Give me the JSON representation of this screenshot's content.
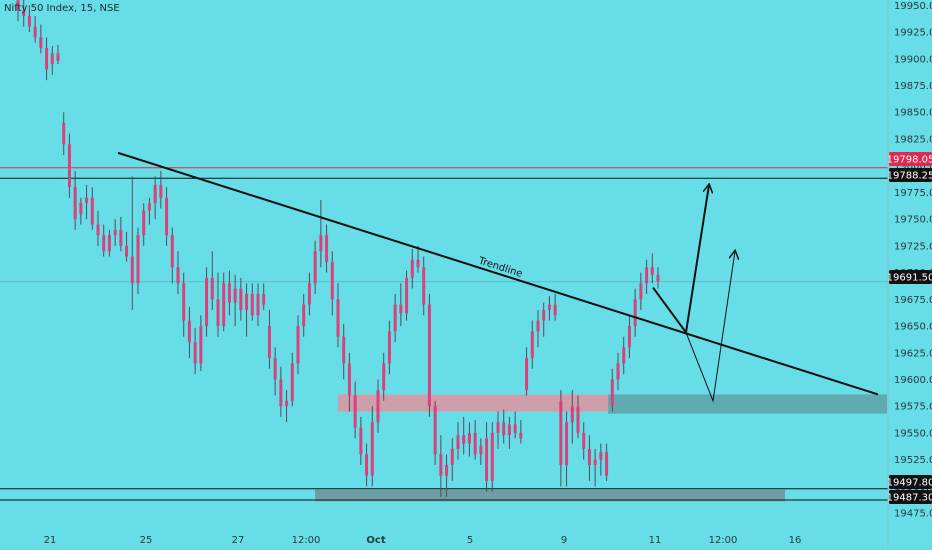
{
  "header": {
    "title": "Nifty 50 Index, 15, NSE"
  },
  "colors": {
    "background": "#67dde7",
    "axis_bg": "#ffffff",
    "candle": "#d9417a",
    "wick": "#5a4a55",
    "resistance_line": "#e0294f",
    "level_line": "#111111",
    "pink_zone": "#d59aa8",
    "teal_zone": "#5fa8ad",
    "gray_zone": "#6f9aa1",
    "projection": "#111111"
  },
  "chart_data": {
    "type": "candlestick",
    "title": "Nifty 50 Index, 15, NSE",
    "ylim": [
      19462,
      19955
    ],
    "y_ticks": [
      "19950.00",
      "19925.00",
      "19900.00",
      "19875.00",
      "19850.00",
      "19825.00",
      "19800.00",
      "19775.00",
      "19750.00",
      "19725.00",
      "19700.00",
      "19675.00",
      "19650.00",
      "19625.00",
      "19600.00",
      "19575.00",
      "19550.00",
      "19525.00",
      "19500.00",
      "19475.00"
    ],
    "x_ticks": [
      "21",
      "25",
      "27",
      "12:00",
      "Oct",
      "5",
      "9",
      "11",
      "12:00",
      "16"
    ],
    "price_tags": [
      {
        "label": "19798.05",
        "value": 19798.05,
        "style": "red"
      },
      {
        "label": "19788.25",
        "value": 19788.25,
        "style": "dark"
      },
      {
        "label": "19691.50",
        "value": 19691.5,
        "style": "dark"
      },
      {
        "label": "19497.80",
        "value": 19497.8,
        "style": "dark"
      },
      {
        "label": "19487.30",
        "value": 19487.3,
        "style": "dark"
      }
    ],
    "horizontal_levels": [
      {
        "value": 19798.05,
        "style": "red"
      },
      {
        "value": 19788.25,
        "style": "dark"
      },
      {
        "value": 19497.8,
        "style": "dark"
      },
      {
        "value": 19487.3,
        "style": "dark"
      }
    ],
    "zones": [
      {
        "name": "supply-demand-zone-pink",
        "from": 19570,
        "to": 19586,
        "style": "pink"
      },
      {
        "name": "support-zone-teal",
        "from": 19568,
        "to": 19586,
        "style": "teal"
      },
      {
        "name": "bottom-support-zone",
        "from": 19486,
        "to": 19497,
        "style": "gray"
      }
    ],
    "trendline": {
      "label": "Trendline",
      "start": 19812,
      "end": 19586
    },
    "annotations": [
      {
        "name": "bull-projection-arrow-direct"
      },
      {
        "name": "bull-projection-arrow-retest"
      }
    ],
    "candles": [
      [
        19955,
        19955,
        19935,
        19945
      ],
      [
        19945,
        19955,
        19930,
        19940
      ],
      [
        19940,
        19950,
        19925,
        19930
      ],
      [
        19930,
        19940,
        19915,
        19920
      ],
      [
        19920,
        19932,
        19905,
        19910
      ],
      [
        19910,
        19920,
        19880,
        19890
      ],
      [
        19895,
        19912,
        19885,
        19905
      ],
      [
        19905,
        19913,
        19895,
        19898
      ],
      [
        19840,
        19850,
        19810,
        19820
      ],
      [
        19820,
        19830,
        19770,
        19780
      ],
      [
        19780,
        19795,
        19740,
        19750
      ],
      [
        19755,
        19770,
        19745,
        19765
      ],
      [
        19765,
        19782,
        19750,
        19770
      ],
      [
        19770,
        19780,
        19740,
        19745
      ],
      [
        19745,
        19758,
        19725,
        19735
      ],
      [
        19735,
        19745,
        19715,
        19720
      ],
      [
        19720,
        19740,
        19715,
        19735
      ],
      [
        19735,
        19750,
        19725,
        19740
      ],
      [
        19740,
        19752,
        19720,
        19725
      ],
      [
        19725,
        19738,
        19710,
        19715
      ],
      [
        19715,
        19790,
        19665,
        19690
      ],
      [
        19690,
        19742,
        19680,
        19735
      ],
      [
        19735,
        19765,
        19725,
        19758
      ],
      [
        19758,
        19770,
        19745,
        19765
      ],
      [
        19765,
        19790,
        19750,
        19782
      ],
      [
        19782,
        19795,
        19760,
        19770
      ],
      [
        19770,
        19780,
        19725,
        19735
      ],
      [
        19735,
        19742,
        19690,
        19705
      ],
      [
        19705,
        19720,
        19680,
        19690
      ],
      [
        19690,
        19700,
        19640,
        19655
      ],
      [
        19655,
        19668,
        19620,
        19635
      ],
      [
        19635,
        19648,
        19605,
        19615
      ],
      [
        19615,
        19660,
        19608,
        19650
      ],
      [
        19650,
        19705,
        19640,
        19695
      ],
      [
        19695,
        19720,
        19665,
        19675
      ],
      [
        19675,
        19700,
        19640,
        19650
      ],
      [
        19650,
        19700,
        19645,
        19690
      ],
      [
        19690,
        19702,
        19660,
        19672
      ],
      [
        19672,
        19698,
        19650,
        19685
      ],
      [
        19685,
        19695,
        19655,
        19665
      ],
      [
        19665,
        19690,
        19640,
        19680
      ],
      [
        19680,
        19690,
        19655,
        19660
      ],
      [
        19660,
        19690,
        19650,
        19680
      ],
      [
        19680,
        19690,
        19665,
        19670
      ],
      [
        19650,
        19665,
        19610,
        19620
      ],
      [
        19620,
        19630,
        19585,
        19600
      ],
      [
        19600,
        19612,
        19565,
        19575
      ],
      [
        19575,
        19590,
        19560,
        19580
      ],
      [
        19580,
        19625,
        19575,
        19615
      ],
      [
        19615,
        19660,
        19605,
        19650
      ],
      [
        19650,
        19680,
        19640,
        19670
      ],
      [
        19670,
        19700,
        19660,
        19690
      ],
      [
        19690,
        19730,
        19680,
        19720
      ],
      [
        19720,
        19768,
        19705,
        19735
      ],
      [
        19735,
        19745,
        19700,
        19710
      ],
      [
        19710,
        19720,
        19660,
        19675
      ],
      [
        19675,
        19690,
        19630,
        19640
      ],
      [
        19640,
        19652,
        19600,
        19615
      ],
      [
        19615,
        19625,
        19570,
        19585
      ],
      [
        19585,
        19598,
        19545,
        19555
      ],
      [
        19555,
        19565,
        19520,
        19530
      ],
      [
        19530,
        19540,
        19500,
        19510
      ],
      [
        19510,
        19575,
        19500,
        19560
      ],
      [
        19560,
        19600,
        19550,
        19590
      ],
      [
        19590,
        19625,
        19580,
        19615
      ],
      [
        19615,
        19655,
        19605,
        19645
      ],
      [
        19645,
        19680,
        19635,
        19670
      ],
      [
        19670,
        19690,
        19650,
        19662
      ],
      [
        19662,
        19702,
        19655,
        19695
      ],
      [
        19695,
        19722,
        19685,
        19712
      ],
      [
        19712,
        19725,
        19700,
        19705
      ],
      [
        19705,
        19715,
        19660,
        19670
      ],
      [
        19670,
        19680,
        19565,
        19575
      ],
      [
        19575,
        19580,
        19520,
        19530
      ],
      [
        19530,
        19548,
        19490,
        19510
      ],
      [
        19510,
        19530,
        19490,
        19520
      ],
      [
        19520,
        19545,
        19505,
        19535
      ],
      [
        19535,
        19560,
        19525,
        19548
      ],
      [
        19548,
        19565,
        19530,
        19540
      ],
      [
        19540,
        19560,
        19528,
        19550
      ],
      [
        19550,
        19562,
        19525,
        19530
      ],
      [
        19530,
        19545,
        19520,
        19538
      ],
      [
        19545,
        19560,
        19495,
        19505
      ],
      [
        19505,
        19560,
        19495,
        19550
      ],
      [
        19550,
        19570,
        19535,
        19560
      ],
      [
        19560,
        19572,
        19540,
        19548
      ],
      [
        19548,
        19565,
        19535,
        19558
      ],
      [
        19558,
        19570,
        19545,
        19550
      ],
      [
        19550,
        19562,
        19540,
        19545
      ],
      [
        19590,
        19630,
        19585,
        19620
      ],
      [
        19620,
        19655,
        19610,
        19645
      ],
      [
        19645,
        19665,
        19630,
        19655
      ],
      [
        19655,
        19672,
        19640,
        19665
      ],
      [
        19665,
        19678,
        19655,
        19670
      ],
      [
        19670,
        19680,
        19655,
        19660
      ],
      [
        19580,
        19590,
        19500,
        19520
      ],
      [
        19520,
        19570,
        19500,
        19560
      ],
      [
        19560,
        19590,
        19540,
        19575
      ],
      [
        19575,
        19585,
        19545,
        19550
      ],
      [
        19550,
        19560,
        19525,
        19535
      ],
      [
        19535,
        19548,
        19505,
        19520
      ],
      [
        19520,
        19535,
        19500,
        19525
      ],
      [
        19525,
        19540,
        19510,
        19532
      ],
      [
        19532,
        19540,
        19505,
        19510
      ],
      [
        19575,
        19610,
        19570,
        19600
      ],
      [
        19600,
        19625,
        19590,
        19615
      ],
      [
        19615,
        19640,
        19605,
        19630
      ],
      [
        19630,
        19660,
        19620,
        19650
      ],
      [
        19650,
        19685,
        19640,
        19675
      ],
      [
        19675,
        19700,
        19665,
        19690
      ],
      [
        19690,
        19712,
        19680,
        19705
      ],
      [
        19705,
        19718,
        19690,
        19698
      ],
      [
        19698,
        19705,
        19685,
        19692
      ]
    ]
  }
}
